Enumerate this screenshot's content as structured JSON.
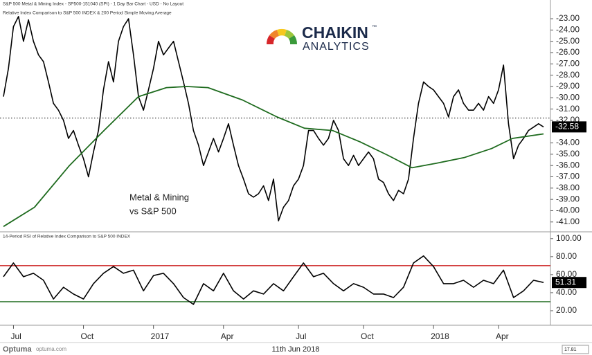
{
  "header": "S&P 500 Metal & Mining Index  - SP500-151040 (SPI) - 1 Day Bar Chart - USD - No Layout",
  "logo": {
    "name": "CHAIKIN",
    "tm": "™",
    "sub": "ANALYTICS"
  },
  "footer": {
    "brand": "Optuma",
    "site": "optuma.com",
    "date": "11th Jun 2018",
    "scale": "17.81"
  },
  "chart_data": [
    {
      "type": "line",
      "title": "Relative Index Comparison to S&P 500 INDEX & 200 Period Simple Moving Average",
      "annotation": [
        "Metal & Mining",
        "vs S&P 500"
      ],
      "xlim": [
        0,
        108
      ],
      "ylim": [
        -41.75,
        -22.2
      ],
      "yticks": [
        {
          "value": -23,
          "label": "-23.00"
        },
        {
          "value": -24,
          "label": "-24.00"
        },
        {
          "value": -25,
          "label": "-25.00"
        },
        {
          "value": -26,
          "label": "-26.00"
        },
        {
          "value": -27,
          "label": "-27.00"
        },
        {
          "value": -28,
          "label": "-28.00"
        },
        {
          "value": -29,
          "label": "-29.00"
        },
        {
          "value": -30,
          "label": "-30.00"
        },
        {
          "value": -31,
          "label": "-31.00"
        },
        {
          "value": -32,
          "label": "-32.00"
        },
        {
          "value": -34,
          "label": "-34.00"
        },
        {
          "value": -35,
          "label": "-35.00"
        },
        {
          "value": -36,
          "label": "-36.00"
        },
        {
          "value": -37,
          "label": "-37.00"
        },
        {
          "value": -38,
          "label": "-38.00"
        },
        {
          "value": -39,
          "label": "-39.00"
        },
        {
          "value": -40,
          "label": "-40.00"
        },
        {
          "value": -41,
          "label": "-41.00"
        }
      ],
      "series": [
        {
          "color": "#000000",
          "values": [
            -29.9,
            -27.4,
            -23.7,
            -22.8,
            -25.0,
            -23.1,
            -25.0,
            -26.2,
            -26.8,
            -28.6,
            -30.5,
            -31.1,
            -32.0,
            -33.6,
            -32.9,
            -34.2,
            -35.4,
            -37.0,
            -34.8,
            -32.9,
            -29.3,
            -26.8,
            -28.6,
            -25.0,
            -23.7,
            -23.0,
            -26.2,
            -29.9,
            -31.1,
            -29.3,
            -27.4,
            -25.0,
            -26.2,
            -25.6,
            -25.0,
            -26.8,
            -28.6,
            -30.5,
            -32.9,
            -34.2,
            -36.0,
            -34.8,
            -33.6,
            -34.8,
            -33.6,
            -32.3,
            -34.2,
            -36.0,
            -37.2,
            -38.5,
            -38.8,
            -38.5,
            -37.8,
            -39.1,
            -37.2,
            -40.9,
            -39.7,
            -39.1,
            -37.8,
            -37.2,
            -36.0,
            -32.9,
            -32.9,
            -33.6,
            -34.2,
            -33.6,
            -32.0,
            -32.9,
            -35.4,
            -36.0,
            -35.1,
            -36.0,
            -35.4,
            -34.8,
            -35.4,
            -37.2,
            -37.5,
            -38.5,
            -39.1,
            -38.2,
            -38.5,
            -37.2,
            -33.6,
            -30.5,
            -28.6,
            -29.0,
            -29.3,
            -29.9,
            -30.5,
            -31.7,
            -29.9,
            -29.3,
            -30.5,
            -31.1,
            -31.1,
            -30.5,
            -31.1,
            -29.9,
            -30.5,
            -29.3,
            -27.1,
            -32.3,
            -35.4,
            -34.2,
            -33.6,
            -32.9,
            -32.6,
            -32.3,
            -32.58
          ]
        },
        {
          "color": "#1e6b1e",
          "x": [
            0,
            6.2,
            13.2,
            20.1,
            27,
            32.6,
            36.7,
            40.9,
            47.8,
            54.7,
            60.2,
            65.8,
            71.3,
            76.9,
            81.7,
            86.6,
            92.1,
            97.6,
            101.8,
            108
          ],
          "values": [
            -41.4,
            -39.7,
            -36.0,
            -32.9,
            -29.9,
            -29.1,
            -29.0,
            -29.1,
            -30.2,
            -31.7,
            -32.7,
            -32.9,
            -33.9,
            -35.1,
            -36.2,
            -35.8,
            -35.3,
            -34.5,
            -33.6,
            -33.2
          ]
        }
      ],
      "last": -32.58,
      "ref_line": -31.8
    },
    {
      "type": "line",
      "title": "14-Period RSI of Relative Index Comparison to S&P 500 INDEX",
      "xlim": [
        0,
        108
      ],
      "xticks": [
        {
          "value": 2,
          "label": "Jul"
        },
        {
          "value": 16,
          "label": "Oct"
        },
        {
          "value": 30,
          "label": "2017"
        },
        {
          "value": 44,
          "label": "Apr"
        },
        {
          "value": 59,
          "label": "Jul"
        },
        {
          "value": 72,
          "label": "Oct"
        },
        {
          "value": 86,
          "label": "2018"
        },
        {
          "value": 99,
          "label": "Apr"
        }
      ],
      "ylim": [
        5.4,
        106
      ],
      "yticks": [
        {
          "value": 20,
          "label": "20.00"
        },
        {
          "value": 40,
          "label": "40.00"
        },
        {
          "value": 60,
          "label": "60.00"
        },
        {
          "value": 80,
          "label": "80.00"
        },
        {
          "value": 100,
          "label": "100.00"
        }
      ],
      "series": [
        {
          "color": "#000000",
          "x": [
            0,
            2,
            4,
            6,
            8,
            10,
            12,
            14,
            16,
            18,
            20,
            22,
            24,
            26,
            28,
            30,
            32,
            34,
            36,
            38,
            40,
            42,
            44,
            46,
            48,
            50,
            52,
            54,
            56,
            58,
            60,
            62,
            64,
            66,
            68,
            70,
            72,
            74,
            76,
            78,
            80,
            82,
            84,
            86,
            88,
            90,
            92,
            94,
            96,
            98,
            100,
            102,
            104,
            106,
            108
          ],
          "values": [
            57.7,
            73,
            57.7,
            61.5,
            53.8,
            33,
            46,
            38.5,
            33,
            50,
            61.5,
            69,
            61.5,
            65,
            42,
            59,
            61.5,
            50,
            34.6,
            27,
            50,
            42,
            61.5,
            42,
            33,
            42,
            38.5,
            50,
            42,
            57.7,
            73,
            57.7,
            61.5,
            50,
            42,
            50,
            46,
            38.5,
            38.5,
            34.6,
            46,
            73,
            80.8,
            69,
            50,
            50,
            53.8,
            46,
            53.8,
            50,
            65,
            34.6,
            42,
            53.8,
            51.31
          ]
        }
      ],
      "levels": [
        {
          "value": 70,
          "color": "#cc1f1f"
        },
        {
          "value": 30,
          "color": "#1e6b1e"
        }
      ],
      "last": 51.31
    }
  ]
}
